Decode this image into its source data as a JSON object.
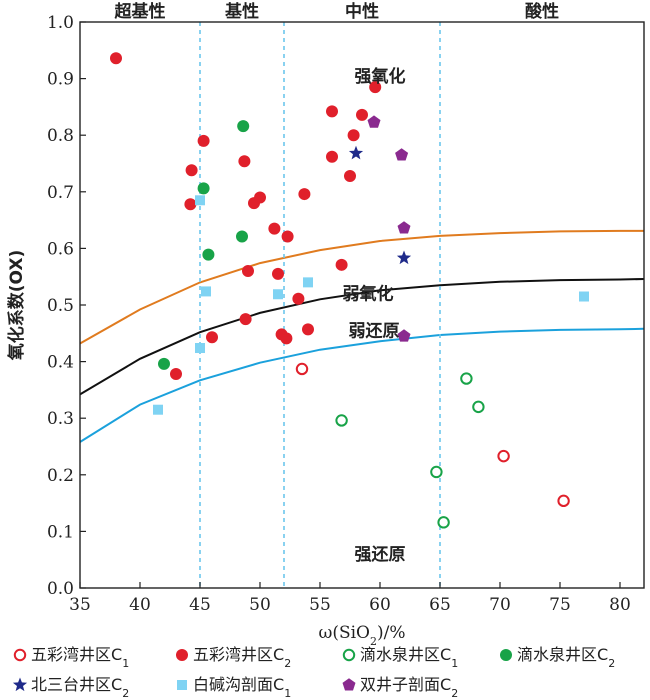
{
  "chart_data": {
    "type": "scatter",
    "title": "",
    "xlabel_parts": [
      "ω(SiO",
      "2",
      ")/%"
    ],
    "ylabel": "氧化系数(OX)",
    "xlim": [
      35,
      82
    ],
    "ylim": [
      0,
      1
    ],
    "x_ticks": [
      35,
      40,
      45,
      50,
      55,
      60,
      65,
      70,
      75,
      80
    ],
    "y_ticks": [
      0.0,
      0.1,
      0.2,
      0.3,
      0.4,
      0.5,
      0.6,
      0.7,
      0.8,
      0.9,
      1.0
    ],
    "y_tick_labels": [
      "0.0",
      "0.1",
      "0.2",
      "0.3",
      "0.4",
      "0.5",
      "0.6",
      "0.7",
      "0.8",
      "0.9",
      "1.0"
    ],
    "grid": false,
    "dividers": [
      45,
      52,
      65
    ],
    "top_labels": [
      {
        "text": "超基性",
        "x": 40
      },
      {
        "text": "基性",
        "x": 48.5
      },
      {
        "text": "中性",
        "x": 58.5
      },
      {
        "text": "酸性",
        "x": 73.5
      }
    ],
    "region_labels": [
      {
        "text": "强氧化",
        "x": 60,
        "y": 0.905
      },
      {
        "text": "弱氧化",
        "x": 59,
        "y": 0.52
      },
      {
        "text": "弱还原",
        "x": 59.5,
        "y": 0.455
      },
      {
        "text": "强还原",
        "x": 60,
        "y": 0.06
      }
    ],
    "curves": [
      {
        "color": "#e07b1f",
        "points": [
          [
            35,
            0.432
          ],
          [
            40,
            0.492
          ],
          [
            45,
            0.54
          ],
          [
            50,
            0.574
          ],
          [
            55,
            0.597
          ],
          [
            60,
            0.613
          ],
          [
            65,
            0.622
          ],
          [
            70,
            0.627
          ],
          [
            75,
            0.63
          ],
          [
            80,
            0.631
          ],
          [
            82,
            0.631
          ]
        ]
      },
      {
        "color": "#111111",
        "points": [
          [
            35,
            0.342
          ],
          [
            40,
            0.405
          ],
          [
            45,
            0.452
          ],
          [
            50,
            0.486
          ],
          [
            55,
            0.51
          ],
          [
            60,
            0.526
          ],
          [
            65,
            0.535
          ],
          [
            70,
            0.541
          ],
          [
            75,
            0.544
          ],
          [
            80,
            0.545
          ],
          [
            82,
            0.546
          ]
        ]
      },
      {
        "color": "#1ba1dc",
        "points": [
          [
            35,
            0.258
          ],
          [
            40,
            0.324
          ],
          [
            45,
            0.367
          ],
          [
            50,
            0.398
          ],
          [
            55,
            0.421
          ],
          [
            60,
            0.436
          ],
          [
            65,
            0.447
          ],
          [
            70,
            0.453
          ],
          [
            75,
            0.456
          ],
          [
            80,
            0.457
          ],
          [
            82,
            0.458
          ]
        ]
      }
    ],
    "series": [
      {
        "name": "五彩湾井区C",
        "sub": "1",
        "marker": "circle-open",
        "color": "#e0202b",
        "points": [
          [
            53.5,
            0.387
          ],
          [
            70.3,
            0.233
          ],
          [
            75.3,
            0.154
          ]
        ]
      },
      {
        "name": "五彩湾井区C",
        "sub": "2",
        "marker": "circle",
        "color": "#e0202b",
        "points": [
          [
            38,
            0.936
          ],
          [
            43,
            0.378
          ],
          [
            44.2,
            0.678
          ],
          [
            44.3,
            0.738
          ],
          [
            45.3,
            0.79
          ],
          [
            46,
            0.443
          ],
          [
            48.7,
            0.754
          ],
          [
            48.8,
            0.475
          ],
          [
            49,
            0.56
          ],
          [
            49.5,
            0.68
          ],
          [
            50,
            0.69
          ],
          [
            51.2,
            0.635
          ],
          [
            51.5,
            0.555
          ],
          [
            51.8,
            0.448
          ],
          [
            52.2,
            0.441
          ],
          [
            52.3,
            0.621
          ],
          [
            53.2,
            0.511
          ],
          [
            53.7,
            0.696
          ],
          [
            54,
            0.457
          ],
          [
            56,
            0.842
          ],
          [
            56,
            0.762
          ],
          [
            56.8,
            0.571
          ],
          [
            57.5,
            0.728
          ],
          [
            57.8,
            0.8
          ],
          [
            58.5,
            0.836
          ],
          [
            59.6,
            0.885
          ]
        ]
      },
      {
        "name": "滴水泉井区C",
        "sub": "1",
        "marker": "circle-open",
        "color": "#18a348",
        "points": [
          [
            56.8,
            0.296
          ],
          [
            64.7,
            0.205
          ],
          [
            65.3,
            0.116
          ],
          [
            67.2,
            0.37
          ],
          [
            68.2,
            0.32
          ]
        ]
      },
      {
        "name": "滴水泉井区C",
        "sub": "2",
        "marker": "circle",
        "color": "#18a348",
        "points": [
          [
            42,
            0.396
          ],
          [
            45.3,
            0.706
          ],
          [
            45.7,
            0.589
          ],
          [
            48.5,
            0.621
          ],
          [
            48.6,
            0.816
          ]
        ]
      },
      {
        "name": "北三台井区C",
        "sub": "2",
        "marker": "star",
        "color": "#1f2a8a",
        "points": [
          [
            58,
            0.768
          ],
          [
            62,
            0.583
          ]
        ]
      },
      {
        "name": "白碱沟剖面C",
        "sub": "1",
        "marker": "square",
        "color": "#7fd3f3",
        "points": [
          [
            41.5,
            0.315
          ],
          [
            45,
            0.424
          ],
          [
            45,
            0.685
          ],
          [
            45.5,
            0.524
          ],
          [
            51.5,
            0.519
          ],
          [
            54,
            0.54
          ],
          [
            77,
            0.515
          ]
        ]
      },
      {
        "name": "双井子剖面C",
        "sub": "2",
        "marker": "pentagon",
        "color": "#8a2a8f",
        "points": [
          [
            59.5,
            0.823
          ],
          [
            61.8,
            0.765
          ],
          [
            62,
            0.636
          ],
          [
            62,
            0.445
          ]
        ]
      }
    ]
  }
}
